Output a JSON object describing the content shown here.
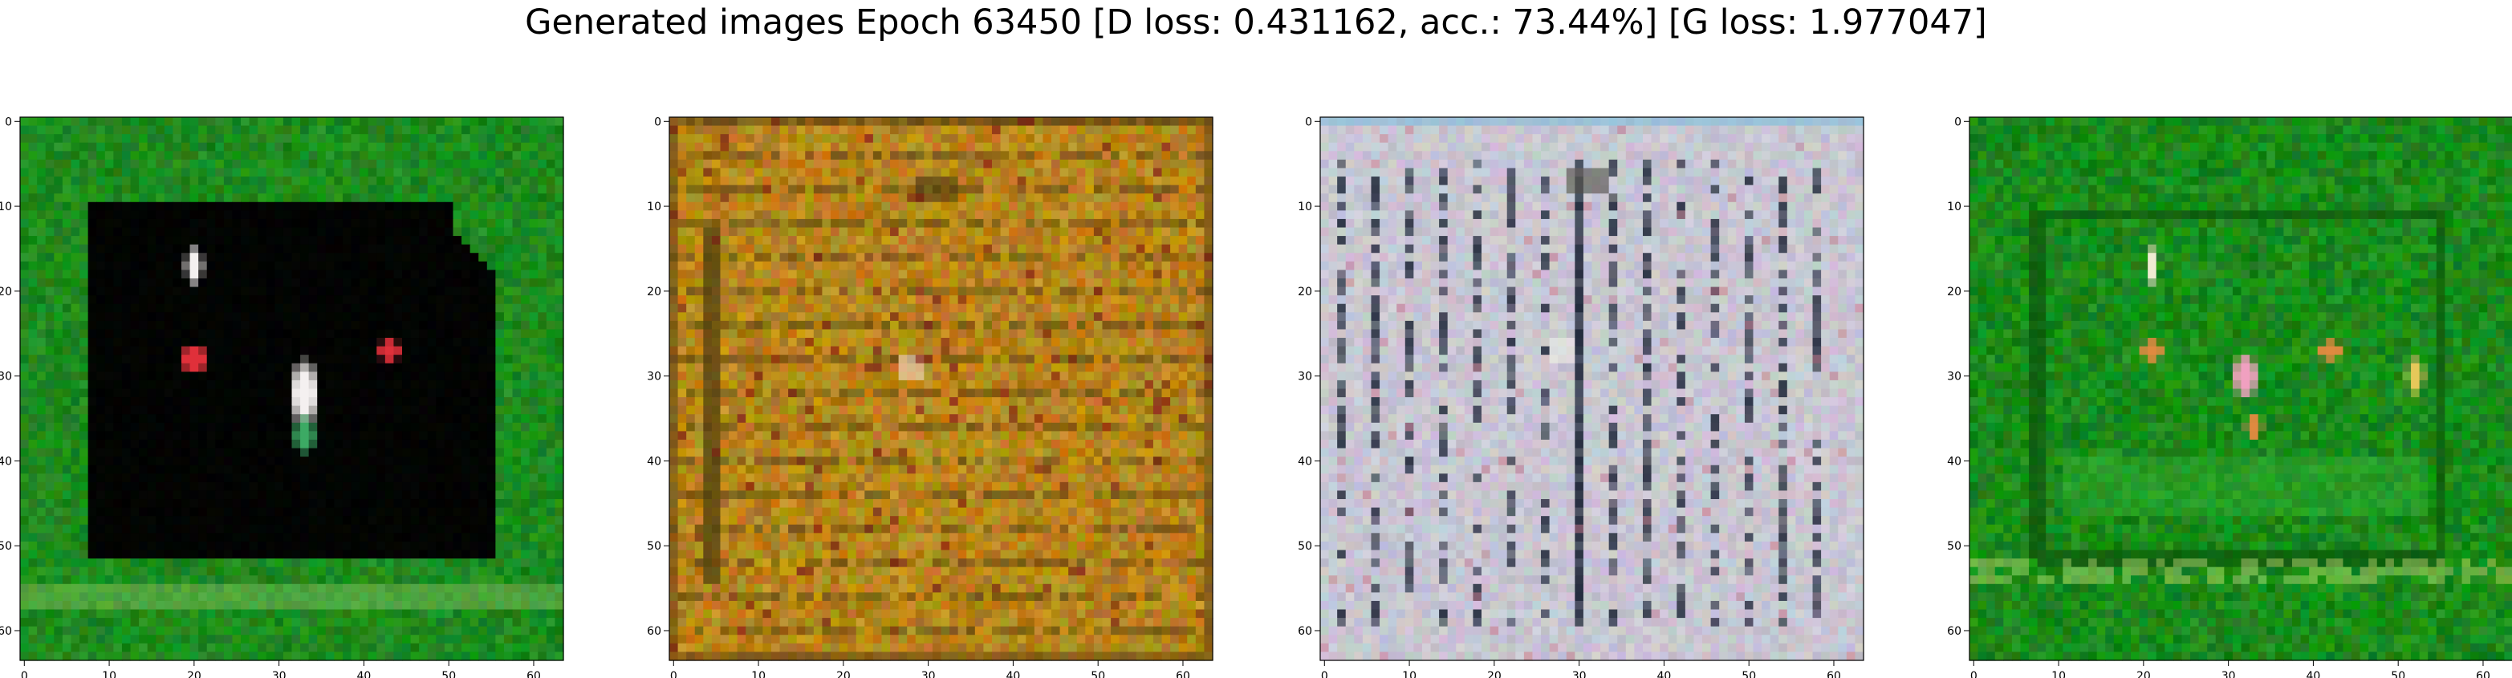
{
  "figure": {
    "title": "Generated images Epoch 63450 [D loss: 0.431162, acc.: 73.44%] [G loss: 1.977047]"
  },
  "chart_data": [
    {
      "type": "heatmap",
      "subject": "generated image 1",
      "palette": "green field with black interior rectangle and small red/white blobs",
      "xlim": [
        -0.5,
        63.5
      ],
      "ylim": [
        63.5,
        -0.5
      ],
      "xticks": [
        0,
        10,
        20,
        30,
        40,
        50,
        60
      ],
      "yticks": [
        0,
        10,
        20,
        30,
        40,
        50,
        60
      ],
      "grid": false,
      "colors": {
        "base": "#1e8a1e",
        "interior": "#020402",
        "blob_red": "#e0303a",
        "blob_white": "#f4f0f0"
      }
    },
    {
      "type": "heatmap",
      "subject": "generated image 2",
      "palette": "ochre/amber texture with horizontal and vertical streaks",
      "xlim": [
        -0.5,
        63.5
      ],
      "ylim": [
        63.5,
        -0.5
      ],
      "xticks": [
        0,
        10,
        20,
        30,
        40,
        50,
        60
      ],
      "yticks": [
        0,
        10,
        20,
        30,
        40,
        50,
        60
      ],
      "grid": false,
      "colors": {
        "base": "#b8861c",
        "dark": "#4a3a10",
        "light": "#d8a840"
      }
    },
    {
      "type": "heatmap",
      "subject": "generated image 3",
      "palette": "light grey with dark vertical bars",
      "xlim": [
        -0.5,
        63.5
      ],
      "ylim": [
        63.5,
        -0.5
      ],
      "xticks": [
        0,
        10,
        20,
        30,
        40,
        50,
        60
      ],
      "yticks": [
        0,
        10,
        20,
        30,
        40,
        50,
        60
      ],
      "grid": false,
      "colors": {
        "base": "#c8c6d2",
        "dark": "#20283a",
        "light": "#e4e2ea"
      }
    },
    {
      "type": "heatmap",
      "subject": "generated image 4",
      "palette": "green field with darker inner frame and orange/pink blobs",
      "xlim": [
        -0.5,
        63.5
      ],
      "ylim": [
        63.5,
        -0.5
      ],
      "xticks": [
        0,
        10,
        20,
        30,
        40,
        50,
        60
      ],
      "yticks": [
        0,
        10,
        20,
        30,
        40,
        50,
        60
      ],
      "grid": false,
      "colors": {
        "base": "#1a8a1a",
        "frame": "#0a4a0a",
        "blob_orange": "#e08a40",
        "blob_pink": "#f0a0c0"
      }
    }
  ]
}
